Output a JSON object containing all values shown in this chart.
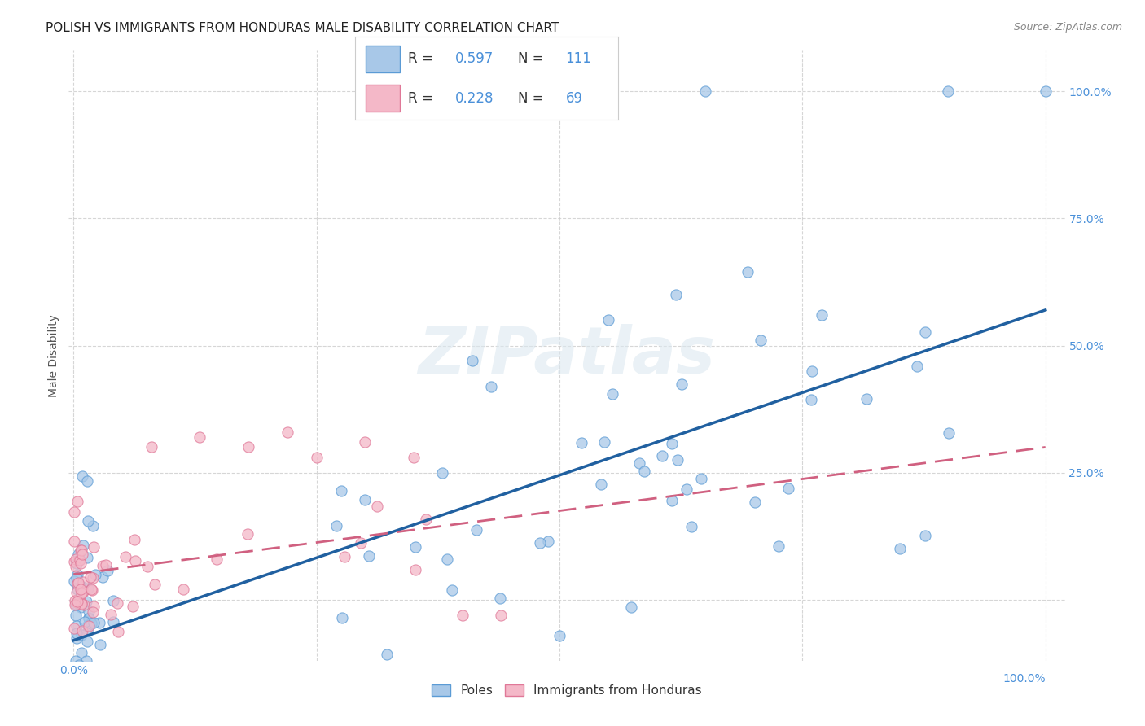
{
  "title": "POLISH VS IMMIGRANTS FROM HONDURAS MALE DISABILITY CORRELATION CHART",
  "source": "Source: ZipAtlas.com",
  "ylabel": "Male Disability",
  "poles_color": "#a8c8e8",
  "poles_edge_color": "#5b9bd5",
  "honduras_color": "#f4b8c8",
  "honduras_edge_color": "#e07898",
  "poles_R": 0.597,
  "poles_N": 111,
  "honduras_R": 0.228,
  "honduras_N": 69,
  "poles_line_color": "#2060a0",
  "honduras_line_color": "#d06080",
  "watermark": "ZIPatlas",
  "legend_label_poles": "Poles",
  "legend_label_honduras": "Immigrants from Honduras",
  "background_color": "#ffffff",
  "grid_color": "#cccccc",
  "title_fontsize": 11,
  "axis_label_fontsize": 10,
  "tick_fontsize": 10,
  "value_color": "#4a90d9"
}
